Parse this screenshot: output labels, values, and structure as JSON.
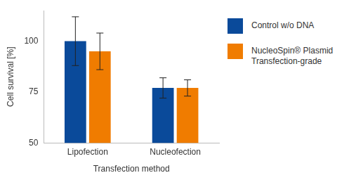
{
  "chart_data": {
    "type": "bar",
    "x_label": "Transfection method",
    "y_label": "Cell survival [%]",
    "categories": [
      "Lipofection",
      "Nucleofection"
    ],
    "series": [
      {
        "name": "Control w/o DNA",
        "color": "#0a4a9a",
        "values": [
          100,
          77
        ],
        "errors": [
          12,
          5
        ]
      },
      {
        "name": "NucleoSpin® Plasmid Transfection-grade",
        "color": "#f07c00",
        "values": [
          95,
          77
        ],
        "errors": [
          9,
          4
        ]
      }
    ],
    "ylim": [
      50,
      115
    ],
    "yticks": [
      50,
      75,
      100
    ],
    "grid": false,
    "legend": "right"
  }
}
